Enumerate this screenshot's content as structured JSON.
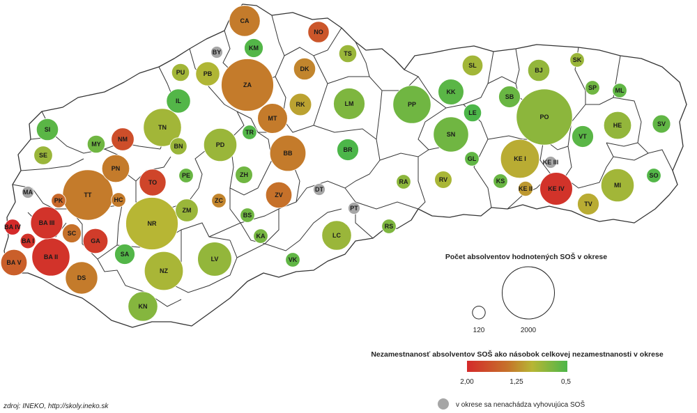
{
  "colors": {
    "red": "#d42a2a",
    "orange": "#c6712a",
    "olive": "#b7b634",
    "green": "#4cb649",
    "gray": "#a6a6a6",
    "outline": "#222222"
  },
  "districts": [
    {
      "code": "CA",
      "count": 700,
      "ratio": 1.55
    },
    {
      "code": "NO",
      "count": 330,
      "ratio": 1.75
    },
    {
      "code": "BY",
      "count": 0,
      "ratio": null
    },
    {
      "code": "KM",
      "count": 260,
      "ratio": 0.55
    },
    {
      "code": "TS",
      "count": 230,
      "ratio": 1.05
    },
    {
      "code": "PU",
      "count": 230,
      "ratio": 1.1
    },
    {
      "code": "PB",
      "count": 420,
      "ratio": 1.2
    },
    {
      "code": "ZA",
      "count": 2000,
      "ratio": 1.55
    },
    {
      "code": "DK",
      "count": 350,
      "ratio": 1.5
    },
    {
      "code": "IL",
      "count": 420,
      "ratio": 0.55
    },
    {
      "code": "RK",
      "count": 360,
      "ratio": 1.35
    },
    {
      "code": "LM",
      "count": 720,
      "ratio": 0.85
    },
    {
      "code": "SL",
      "count": 310,
      "ratio": 1.1
    },
    {
      "code": "BJ",
      "count": 350,
      "ratio": 1.0
    },
    {
      "code": "SK",
      "count": 150,
      "ratio": 1.05
    },
    {
      "code": "SP",
      "count": 150,
      "ratio": 0.75
    },
    {
      "code": "ML",
      "count": 150,
      "ratio": 0.65
    },
    {
      "code": "KK",
      "count": 480,
      "ratio": 0.6
    },
    {
      "code": "SB",
      "count": 340,
      "ratio": 0.7
    },
    {
      "code": "PP",
      "count": 1050,
      "ratio": 0.75
    },
    {
      "code": "PO",
      "count": 2300,
      "ratio": 0.95
    },
    {
      "code": "LE",
      "count": 230,
      "ratio": 0.5
    },
    {
      "code": "HE",
      "count": 560,
      "ratio": 1.0
    },
    {
      "code": "SV",
      "count": 240,
      "ratio": 0.65
    },
    {
      "code": "SI",
      "count": 350,
      "ratio": 0.6
    },
    {
      "code": "MT",
      "count": 650,
      "ratio": 1.55
    },
    {
      "code": "TN",
      "count": 1050,
      "ratio": 1.1
    },
    {
      "code": "NM",
      "count": 380,
      "ratio": 1.8
    },
    {
      "code": "MY",
      "count": 230,
      "ratio": 0.75
    },
    {
      "code": "TR",
      "count": 150,
      "ratio": 0.55
    },
    {
      "code": "SN",
      "count": 900,
      "ratio": 0.75
    },
    {
      "code": "VT",
      "count": 340,
      "ratio": 0.6
    },
    {
      "code": "SE",
      "count": 250,
      "ratio": 1.05
    },
    {
      "code": "BN",
      "count": 210,
      "ratio": 1.05
    },
    {
      "code": "PD",
      "count": 800,
      "ratio": 1.05
    },
    {
      "code": "BB",
      "count": 950,
      "ratio": 1.55
    },
    {
      "code": "BR",
      "count": 340,
      "ratio": 0.45
    },
    {
      "code": "PN",
      "count": 560,
      "ratio": 1.55
    },
    {
      "code": "GL",
      "count": 150,
      "ratio": 0.65
    },
    {
      "code": "KE I",
      "count": 1100,
      "ratio": 1.3
    },
    {
      "code": "KE III",
      "count": 0,
      "ratio": null
    },
    {
      "code": "SO",
      "count": 150,
      "ratio": 0.55
    },
    {
      "code": "PE",
      "count": 150,
      "ratio": 0.7
    },
    {
      "code": "ZH",
      "count": 220,
      "ratio": 0.75
    },
    {
      "code": "MA",
      "count": 0,
      "ratio": null
    },
    {
      "code": "TT",
      "count": 1850,
      "ratio": 1.55
    },
    {
      "code": "TO",
      "count": 520,
      "ratio": 1.85
    },
    {
      "code": "ZV",
      "count": 500,
      "ratio": 1.6
    },
    {
      "code": "DT",
      "count": 0,
      "ratio": null
    },
    {
      "code": "RA",
      "count": 150,
      "ratio": 0.95
    },
    {
      "code": "RV",
      "count": 220,
      "ratio": 1.15
    },
    {
      "code": "KS",
      "count": 150,
      "ratio": 0.7
    },
    {
      "code": "KE II",
      "count": 160,
      "ratio": 1.4
    },
    {
      "code": "KE IV",
      "count": 780,
      "ratio": 1.95
    },
    {
      "code": "MI",
      "count": 800,
      "ratio": 1.1
    },
    {
      "code": "PK",
      "count": 150,
      "ratio": 1.65
    },
    {
      "code": "HC",
      "count": 150,
      "ratio": 1.55
    },
    {
      "code": "ZC",
      "count": 150,
      "ratio": 1.5
    },
    {
      "code": "ZM",
      "count": 380,
      "ratio": 1.05
    },
    {
      "code": "TV",
      "count": 340,
      "ratio": 1.3
    },
    {
      "code": "PT",
      "count": 0,
      "ratio": null
    },
    {
      "code": "BA IV",
      "count": 180,
      "ratio": 2.0
    },
    {
      "code": "BA III",
      "count": 750,
      "ratio": 1.95
    },
    {
      "code": "BA I",
      "count": 170,
      "ratio": 1.95
    },
    {
      "code": "SC",
      "count": 260,
      "ratio": 1.6
    },
    {
      "code": "NR",
      "count": 2000,
      "ratio": 1.25
    },
    {
      "code": "GA",
      "count": 450,
      "ratio": 1.9
    },
    {
      "code": "BS",
      "count": 150,
      "ratio": 0.75
    },
    {
      "code": "RS",
      "count": 150,
      "ratio": 0.85
    },
    {
      "code": "LC",
      "count": 640,
      "ratio": 1.05
    },
    {
      "code": "KA",
      "count": 150,
      "ratio": 0.8
    },
    {
      "code": "SA",
      "count": 300,
      "ratio": 0.55
    },
    {
      "code": "BA II",
      "count": 1050,
      "ratio": 1.95
    },
    {
      "code": "BA V",
      "count": 500,
      "ratio": 1.7
    },
    {
      "code": "LV",
      "count": 850,
      "ratio": 1.0
    },
    {
      "code": "VK",
      "count": 150,
      "ratio": 0.65
    },
    {
      "code": "DS",
      "count": 760,
      "ratio": 1.55
    },
    {
      "code": "NZ",
      "count": 1100,
      "ratio": 1.15
    },
    {
      "code": "KN",
      "count": 640,
      "ratio": 0.9
    }
  ],
  "legend": {
    "size_title": "Počet absolventov hodnotených SOŠ v okrese",
    "size_small_label": "120",
    "size_small_value": 120,
    "size_large_label": "2000",
    "size_large_value": 2000,
    "color_title": "Nezamestnanosť absolventov SOŠ ako násobok celkovej nezamestnanosti v okrese",
    "color_ticks": [
      "2,00",
      "1,25",
      "0,5"
    ],
    "color_stops": [
      "#d42a2a",
      "#c6712a",
      "#b7b634",
      "#4cb649"
    ],
    "missing_label": "v okrese sa nenachádza vyhovujúca SOŠ"
  },
  "source": "zdroj: INEKO, http://skoly.ineko.sk"
}
